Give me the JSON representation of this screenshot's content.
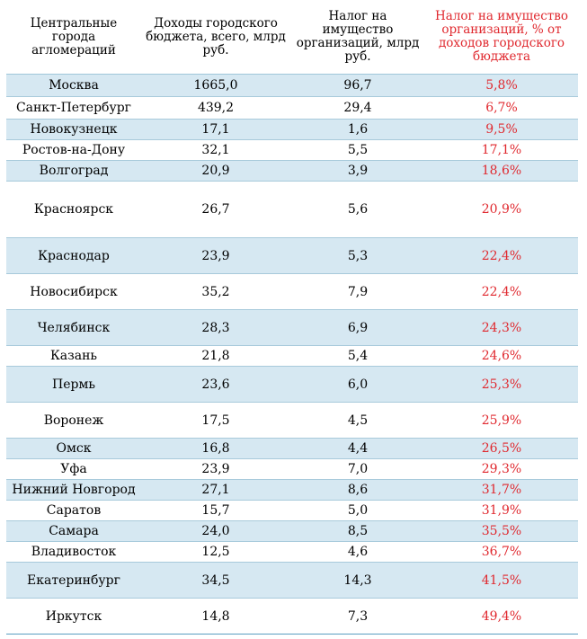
{
  "headers": [
    "Центральные города агломераций",
    "Доходы городского бюджета, всего, млрд руб.",
    "Налог на имущество организаций, млрд руб.",
    "Налог на имущество организаций, % от доходов городского бюджета"
  ],
  "rows": [
    [
      "Москва",
      "1665,0",
      "96,7",
      "5,8%"
    ],
    [
      "Санкт-Петербург",
      "439,2",
      "29,4",
      "6,7%"
    ],
    [
      "Новокузнецк",
      "17,1",
      "1,6",
      "9,5%"
    ],
    [
      "Ростов-на-Дону",
      "32,1",
      "5,5",
      "17,1%"
    ],
    [
      "Волгоград",
      "20,9",
      "3,9",
      "18,6%"
    ],
    [
      "Красноярск",
      "26,7",
      "5,6",
      "20,9%"
    ],
    [
      "Краснодар",
      "23,9",
      "5,3",
      "22,4%"
    ],
    [
      "Новосибирск",
      "35,2",
      "7,9",
      "22,4%"
    ],
    [
      "Челябинск",
      "28,3",
      "6,9",
      "24,3%"
    ],
    [
      "Казань",
      "21,8",
      "5,4",
      "24,6%"
    ],
    [
      "Пермь",
      "23,6",
      "6,0",
      "25,3%"
    ],
    [
      "Воронеж",
      "17,5",
      "4,5",
      "25,9%"
    ],
    [
      "Омск",
      "16,8",
      "4,4",
      "26,5%"
    ],
    [
      "Уфа",
      "23,9",
      "7,0",
      "29,3%"
    ],
    [
      "Нижний Новгород",
      "27,1",
      "8,6",
      "31,7%"
    ],
    [
      "Саратов",
      "15,7",
      "5,0",
      "31,9%"
    ],
    [
      "Самара",
      "24,0",
      "8,5",
      "35,5%"
    ],
    [
      "Владивосток",
      "12,5",
      "4,6",
      "36,7%"
    ],
    [
      "Екатеринбург",
      "34,5",
      "14,3",
      "41,5%"
    ],
    [
      "Иркутск",
      "14,8",
      "7,3",
      "49,4%"
    ]
  ],
  "colors": {
    "stripe": "#d6e8f2",
    "accent_red": "#e0292f",
    "rule": "#a8cadb"
  }
}
